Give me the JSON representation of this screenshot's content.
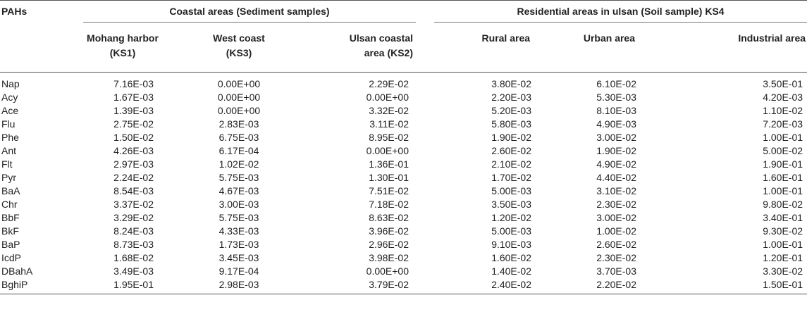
{
  "header": {
    "pahs_label": "PAHs",
    "group_coastal": "Coastal areas (Sediment samples)",
    "group_residential": "Residential areas in ulsan (Soil sample) KS4",
    "columns": [
      {
        "line1": "Mohang harbor",
        "line2": "(KS1)"
      },
      {
        "line1": "West coast",
        "line2": "(KS3)"
      },
      {
        "line1": "Ulsan coastal",
        "line2": "area (KS2)"
      },
      {
        "line1": "Rural area",
        "line2": ""
      },
      {
        "line1": "Urban area",
        "line2": ""
      },
      {
        "line1": "Industrial area",
        "line2": ""
      }
    ]
  },
  "rows": [
    {
      "name": "Nap",
      "v": [
        "7.16E-03",
        "0.00E+00",
        "2.29E-02",
        "3.80E-02",
        "6.10E-02",
        "3.50E-01"
      ]
    },
    {
      "name": "Acy",
      "v": [
        "1.67E-03",
        "0.00E+00",
        "0.00E+00",
        "2.20E-03",
        "5.30E-03",
        "4.20E-03"
      ]
    },
    {
      "name": "Ace",
      "v": [
        "1.39E-03",
        "0.00E+00",
        "3.32E-02",
        "5.20E-03",
        "8.10E-03",
        "1.10E-02"
      ]
    },
    {
      "name": "Flu",
      "v": [
        "2.75E-02",
        "2.83E-03",
        "3.11E-02",
        "5.80E-03",
        "4.90E-03",
        "7.20E-03"
      ]
    },
    {
      "name": "Phe",
      "v": [
        "1.50E-02",
        "6.75E-03",
        "8.95E-02",
        "1.90E-02",
        "3.00E-02",
        "1.00E-01"
      ]
    },
    {
      "name": "Ant",
      "v": [
        "4.26E-03",
        "6.17E-04",
        "0.00E+00",
        "2.60E-02",
        "1.90E-02",
        "5.00E-02"
      ]
    },
    {
      "name": "Flt",
      "v": [
        "2.97E-03",
        "1.02E-02",
        "1.36E-01",
        "2.10E-02",
        "4.90E-02",
        "1.90E-01"
      ]
    },
    {
      "name": "Pyr",
      "v": [
        "2.24E-02",
        "5.75E-03",
        "1.30E-01",
        "1.70E-02",
        "4.40E-02",
        "1.60E-01"
      ]
    },
    {
      "name": "BaA",
      "v": [
        "8.54E-03",
        "4.67E-03",
        "7.51E-02",
        "5.00E-03",
        "3.10E-02",
        "1.00E-01"
      ]
    },
    {
      "name": "Chr",
      "v": [
        "3.37E-02",
        "3.00E-03",
        "7.18E-02",
        "3.50E-03",
        "2.30E-02",
        "9.80E-02"
      ]
    },
    {
      "name": "BbF",
      "v": [
        "3.29E-02",
        "5.75E-03",
        "8.63E-02",
        "1.20E-02",
        "3.00E-02",
        "3.40E-01"
      ]
    },
    {
      "name": "BkF",
      "v": [
        "8.24E-03",
        "4.33E-03",
        "3.96E-02",
        "5.00E-03",
        "1.00E-02",
        "9.30E-02"
      ]
    },
    {
      "name": "BaP",
      "v": [
        "8.73E-03",
        "1.73E-03",
        "2.96E-02",
        "9.10E-03",
        "2.60E-02",
        "1.00E-01"
      ]
    },
    {
      "name": "IcdP",
      "v": [
        "1.68E-02",
        "3.45E-03",
        "3.98E-02",
        "1.60E-02",
        "2.30E-02",
        "1.20E-01"
      ]
    },
    {
      "name": "DBahA",
      "v": [
        "3.49E-03",
        "9.17E-04",
        "0.00E+00",
        "1.40E-02",
        "3.70E-03",
        "3.30E-02"
      ]
    },
    {
      "name": "BghiP",
      "v": [
        "1.95E-01",
        "2.98E-03",
        "3.79E-02",
        "2.40E-02",
        "2.20E-02",
        "1.50E-01"
      ]
    }
  ]
}
